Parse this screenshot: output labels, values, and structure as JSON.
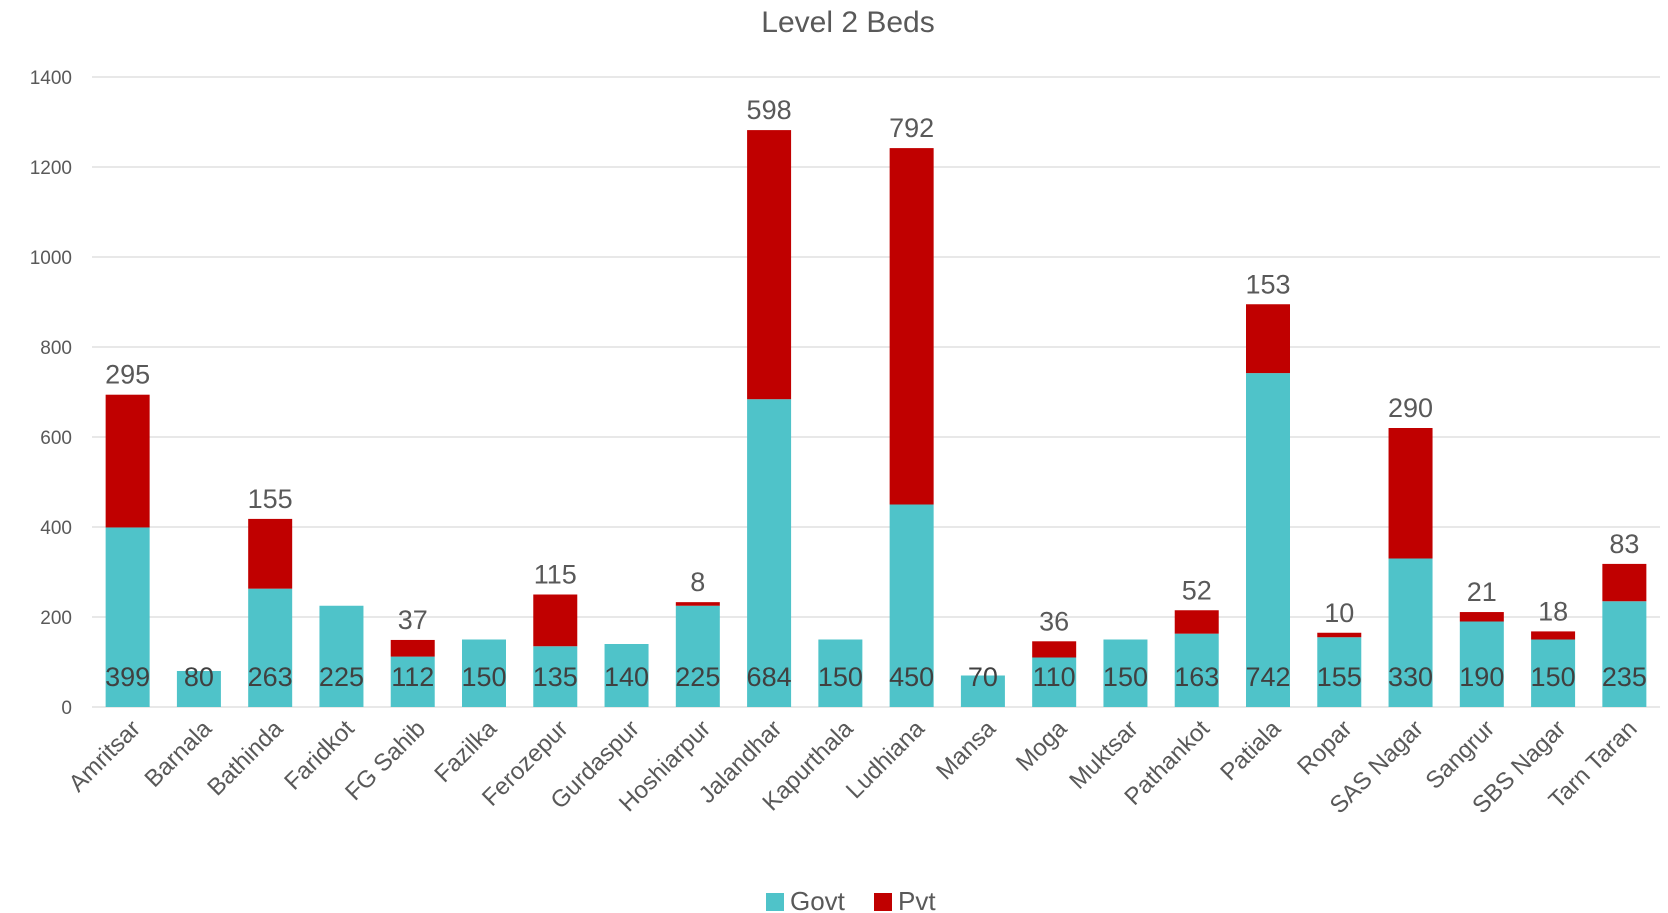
{
  "chart_data": {
    "type": "bar",
    "stacked": true,
    "title": "Level 2 Beds",
    "categories": [
      "Amritsar",
      "Barnala",
      "Bathinda",
      "Faridkot",
      "FG Sahib",
      "Fazilka",
      "Ferozepur",
      "Gurdaspur",
      "Hoshiarpur",
      "Jalandhar",
      "Kapurthala",
      "Ludhiana",
      "Mansa",
      "Moga",
      "Muktsar",
      "Pathankot",
      "Patiala",
      "Ropar",
      "SAS Nagar",
      "Sangrur",
      "SBS Nagar",
      "Tarn Taran"
    ],
    "series": [
      {
        "name": "Govt",
        "color": "#4fc3c9",
        "values": [
          399,
          80,
          263,
          225,
          112,
          150,
          135,
          140,
          225,
          684,
          150,
          450,
          70,
          110,
          150,
          163,
          742,
          155,
          330,
          190,
          150,
          235
        ]
      },
      {
        "name": "Pvt",
        "color": "#c00000",
        "values": [
          295,
          0,
          155,
          0,
          37,
          0,
          115,
          0,
          8,
          598,
          0,
          792,
          0,
          36,
          0,
          52,
          153,
          10,
          290,
          21,
          18,
          83
        ]
      }
    ],
    "ylim": [
      0,
      1400
    ],
    "yticks": [
      0,
      200,
      400,
      600,
      800,
      1000,
      1200,
      1400
    ],
    "grid": true,
    "legend_position": "bottom"
  }
}
